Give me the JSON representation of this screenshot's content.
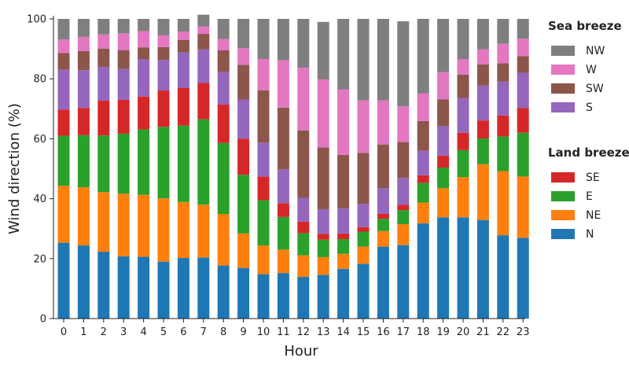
{
  "chart_data": {
    "type": "bar",
    "stacked": true,
    "xlabel": "Hour",
    "ylabel": "Wind direction (%)",
    "ylim": [
      0,
      100
    ],
    "yticks": [
      0,
      20,
      40,
      60,
      80,
      100
    ],
    "grid": false,
    "legend_placement": "right",
    "categories": [
      "0",
      "1",
      "2",
      "3",
      "4",
      "5",
      "6",
      "7",
      "8",
      "9",
      "10",
      "11",
      "12",
      "13",
      "14",
      "15",
      "16",
      "17",
      "18",
      "19",
      "20",
      "21",
      "22",
      "23"
    ],
    "legend_groups": [
      {
        "title": "Sea breeze",
        "series": [
          "NW",
          "W",
          "SW",
          "S"
        ]
      },
      {
        "title": "Land breeze",
        "series": [
          "SE",
          "E",
          "NE",
          "N"
        ]
      }
    ],
    "series": [
      {
        "name": "N",
        "color": "#1f77b4",
        "values": [
          25.3,
          24.4,
          22.3,
          20.8,
          20.6,
          19.0,
          20.2,
          20.4,
          17.7,
          16.9,
          14.8,
          15.2,
          13.9,
          14.6,
          16.6,
          18.3,
          24.0,
          24.5,
          31.8,
          33.8,
          33.8,
          32.9,
          27.8,
          26.9
        ]
      },
      {
        "name": "NE",
        "color": "#ff7f0e",
        "values": [
          19.0,
          19.4,
          19.9,
          20.9,
          20.7,
          21.1,
          18.7,
          17.6,
          17.2,
          11.5,
          9.6,
          7.8,
          7.2,
          5.9,
          5.0,
          5.7,
          5.2,
          7.0,
          6.9,
          9.7,
          13.4,
          18.6,
          21.4,
          20.5
        ]
      },
      {
        "name": "E",
        "color": "#2ca02c",
        "values": [
          16.7,
          17.4,
          18.9,
          20.0,
          21.8,
          23.9,
          25.5,
          28.5,
          23.7,
          19.6,
          15.1,
          10.9,
          7.4,
          5.8,
          4.9,
          5.0,
          4.1,
          4.7,
          6.6,
          6.9,
          9.0,
          8.6,
          11.6,
          14.6
        ]
      },
      {
        "name": "SE",
        "color": "#d62728",
        "values": [
          8.7,
          9.1,
          11.6,
          11.3,
          11.0,
          12.1,
          12.5,
          12.1,
          12.8,
          12.0,
          7.9,
          4.6,
          3.8,
          2.0,
          1.9,
          1.5,
          1.7,
          1.8,
          2.5,
          4.0,
          5.8,
          6.0,
          7.0,
          8.2
        ]
      },
      {
        "name": "S",
        "color": "#9467bd",
        "values": [
          13.3,
          12.6,
          11.3,
          10.3,
          12.4,
          10.2,
          11.9,
          11.2,
          10.9,
          13.1,
          11.3,
          11.3,
          8.0,
          8.2,
          8.4,
          7.8,
          8.5,
          8.9,
          8.2,
          9.8,
          11.6,
          11.7,
          11.3,
          11.8
        ]
      },
      {
        "name": "SW",
        "color": "#8c564b",
        "values": [
          5.6,
          6.4,
          6.1,
          6.2,
          4.0,
          4.3,
          4.2,
          5.2,
          7.2,
          11.6,
          17.5,
          20.6,
          22.5,
          20.6,
          17.8,
          17.0,
          14.6,
          12.0,
          9.9,
          8.9,
          7.8,
          7.0,
          6.1,
          5.6
        ]
      },
      {
        "name": "W",
        "color": "#e377c2",
        "values": [
          4.5,
          4.7,
          4.7,
          5.7,
          5.4,
          3.9,
          2.8,
          2.5,
          3.8,
          5.5,
          10.4,
          15.8,
          20.9,
          22.7,
          21.9,
          17.5,
          14.7,
          11.9,
          9.2,
          9.1,
          5.2,
          5.0,
          6.5,
          5.8
        ]
      },
      {
        "name": "NW",
        "color": "#7f7f7f",
        "values": [
          6.9,
          6.0,
          5.2,
          4.8,
          4.1,
          5.5,
          4.2,
          3.9,
          6.7,
          9.8,
          13.4,
          13.8,
          16.3,
          19.2,
          23.5,
          27.2,
          27.2,
          28.4,
          24.9,
          17.8,
          13.4,
          10.2,
          8.3,
          6.6
        ]
      }
    ]
  }
}
